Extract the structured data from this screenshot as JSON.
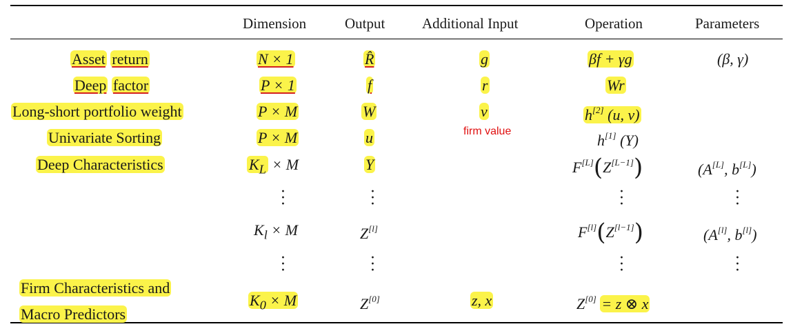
{
  "headers": {
    "dimension": "Dimension",
    "output": "Output",
    "additional_input": "Additional Input",
    "operation": "Operation",
    "parameters": "Parameters"
  },
  "rows": [
    {
      "name_a": "Asset",
      "name_b": "return",
      "dimension": "N × 1",
      "output": "R̂",
      "additional": "g",
      "operation": "βf + γg",
      "parameters": "(β, γ)"
    },
    {
      "name_a": "Deep",
      "name_b": "factor",
      "dimension": "P × 1",
      "output": "f",
      "additional": "r",
      "operation": "Wr",
      "parameters": ""
    },
    {
      "name": "Long-short portfolio weight",
      "dimension": "P × M",
      "output": "W",
      "additional": "v",
      "operation_fn": "h",
      "operation_sup": "[2]",
      "operation_arg": "(u, v)",
      "parameters": ""
    },
    {
      "name": "Univariate Sorting",
      "dimension": "P × M",
      "output": "u",
      "additional_note": "firm value",
      "operation_fn": "h",
      "operation_sup": "[1]",
      "operation_arg": "(Y)",
      "parameters": ""
    },
    {
      "name": "Deep Characteristics",
      "dimension_base": "K",
      "dimension_sub": "L",
      "dimension_rest": "× M",
      "output": "Y",
      "operation_fn": "F",
      "operation_sup": "[L]",
      "operation_inner": "Z",
      "operation_inner_sup": "[L−1]",
      "param_a": "(A",
      "param_a_sup": "[L]",
      "param_b": ", b",
      "param_b_sup": "[L]",
      "param_close": ")"
    },
    {
      "dimension_base": "K",
      "dimension_sub": "l",
      "dimension_rest": "× M",
      "output": "Z",
      "output_sup": "[l]",
      "operation_fn": "F",
      "operation_sup": "[l]",
      "operation_inner": "Z",
      "operation_inner_sup": "[l−1]",
      "param_a": "(A",
      "param_a_sup": "[l]",
      "param_b": ", b",
      "param_b_sup": "[l]",
      "param_close": ")"
    },
    {
      "name_line1": "Firm Characteristics and",
      "name_line2": "Macro Predictors",
      "dimension_base": "K",
      "dimension_sub": "0",
      "dimension_rest": "× M",
      "output": "Z",
      "output_sup": "[0]",
      "additional": "z, x",
      "operation_lhs": "Z",
      "operation_lhs_sup": "[0]",
      "operation_rhs": "= z ⊗ x"
    }
  ]
}
